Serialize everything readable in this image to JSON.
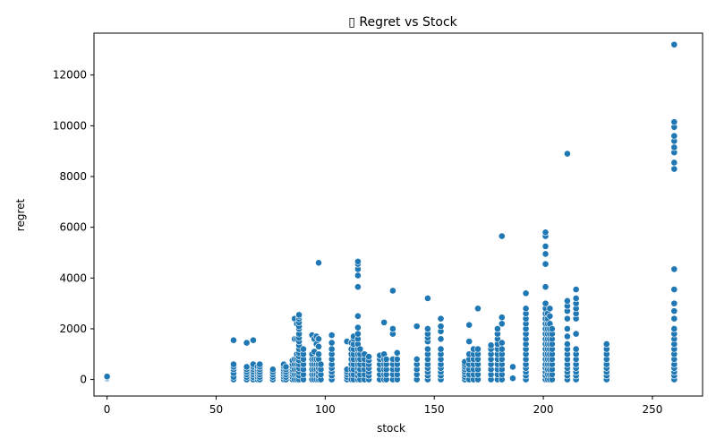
{
  "chart_data": {
    "type": "scatter",
    "title": "▯ Regret vs Stock",
    "xlabel": "stock",
    "ylabel": "regret",
    "xlim": [
      -6,
      273
    ],
    "ylim": [
      -650,
      13650
    ],
    "xticks": [
      "0",
      "50",
      "100",
      "150",
      "200",
      "250"
    ],
    "xtick_values": [
      0,
      50,
      100,
      150,
      200,
      250
    ],
    "yticks": [
      "0",
      "2000",
      "4000",
      "6000",
      "8000",
      "10000",
      "12000"
    ],
    "ytick_values": [
      0,
      2000,
      4000,
      6000,
      8000,
      10000,
      12000
    ],
    "grid": false,
    "legend": "none",
    "marker_color": "#1f77b4",
    "series": [
      {
        "columns": [
          {
            "x": 0,
            "y": [
              30,
              60,
              90,
              120
            ]
          },
          {
            "x": 58,
            "y": [
              0,
              100,
              250,
              400,
              500,
              600,
              1550
            ]
          },
          {
            "x": 64,
            "y": [
              0,
              100,
              200,
              300,
              400,
              500,
              1450
            ]
          },
          {
            "x": 67,
            "y": [
              0,
              100,
              200,
              300,
              400,
              500,
              600,
              1550
            ]
          },
          {
            "x": 69,
            "y": [
              0,
              100,
              200,
              300,
              400,
              500
            ]
          },
          {
            "x": 70,
            "y": [
              0,
              100,
              200,
              300,
              400,
              500,
              600
            ]
          },
          {
            "x": 76,
            "y": [
              0,
              100,
              200,
              300,
              400
            ]
          },
          {
            "x": 81,
            "y": [
              0,
              100,
              200,
              300,
              400,
              500,
              600
            ]
          },
          {
            "x": 82,
            "y": [
              0,
              100,
              200,
              300,
              400,
              500
            ]
          },
          {
            "x": 85,
            "y": [
              0,
              100,
              200,
              300,
              400,
              500,
              600,
              750
            ]
          },
          {
            "x": 86,
            "y": [
              0,
              200,
              400,
              600,
              800,
              1600,
              2400
            ]
          },
          {
            "x": 87,
            "y": [
              0,
              200,
              400,
              600,
              800,
              1000,
              1600,
              2200
            ]
          },
          {
            "x": 88,
            "y": [
              0,
              150,
              300,
              450,
              600,
              750,
              900,
              1050,
              1200,
              1350,
              1500,
              1650,
              1800,
              2000,
              2100,
              2250,
              2400,
              2500,
              2550
            ]
          },
          {
            "x": 90,
            "y": [
              0,
              200,
              400,
              600,
              800,
              1000,
              1200
            ]
          },
          {
            "x": 94,
            "y": [
              0,
              200,
              400,
              600,
              800,
              1000,
              1750
            ]
          },
          {
            "x": 95,
            "y": [
              0,
              200,
              400,
              600,
              800,
              1100,
              1600
            ]
          },
          {
            "x": 96,
            "y": [
              0,
              200,
              400,
              600,
              800,
              1400,
              1700
            ]
          },
          {
            "x": 97,
            "y": [
              0,
              150,
              300,
              450,
              600,
              800,
              1000,
              1300,
              1600,
              4600
            ]
          },
          {
            "x": 98,
            "y": [
              0,
              200,
              400,
              600
            ]
          },
          {
            "x": 103,
            "y": [
              0,
              150,
              300,
              450,
              600,
              800,
              1000,
              1200,
              1450,
              1750
            ]
          },
          {
            "x": 110,
            "y": [
              0,
              100,
              200,
              300,
              400,
              1500
            ]
          },
          {
            "x": 112,
            "y": [
              0,
              200,
              400,
              600,
              800,
              1000,
              1200,
              1450
            ]
          },
          {
            "x": 113,
            "y": [
              0,
              200,
              400,
              600,
              800,
              1000,
              1200,
              1400,
              1600,
              1700
            ]
          },
          {
            "x": 115,
            "y": [
              0,
              150,
              300,
              450,
              600,
              800,
              1000,
              1200,
              1400,
              1600,
              1800,
              2050,
              2500,
              3650,
              4100,
              4350,
              4550,
              4650
            ]
          },
          {
            "x": 116,
            "y": [
              0,
              200,
              400,
              600,
              800,
              1000,
              1200
            ]
          },
          {
            "x": 118,
            "y": [
              0,
              200,
              400,
              600,
              800,
              1000
            ]
          },
          {
            "x": 120,
            "y": [
              0,
              150,
              300,
              450,
              600,
              750,
              900
            ]
          },
          {
            "x": 125,
            "y": [
              0,
              200,
              400,
              600,
              800,
              950
            ]
          },
          {
            "x": 127,
            "y": [
              0,
              200,
              400,
              600,
              800,
              1000,
              2250
            ]
          },
          {
            "x": 128,
            "y": [
              0,
              200,
              400,
              600,
              800
            ]
          },
          {
            "x": 131,
            "y": [
              0,
              200,
              400,
              600,
              800,
              1800,
              2000,
              3500
            ]
          },
          {
            "x": 133,
            "y": [
              0,
              200,
              400,
              600,
              800,
              1050
            ]
          },
          {
            "x": 142,
            "y": [
              0,
              200,
              400,
              600,
              800,
              2100
            ]
          },
          {
            "x": 147,
            "y": [
              0,
              150,
              300,
              450,
              600,
              800,
              1000,
              1200,
              1500,
              1650,
              1800,
              2000,
              3200
            ]
          },
          {
            "x": 153,
            "y": [
              0,
              150,
              300,
              450,
              600,
              800,
              1000,
              1200,
              1600,
              1900,
              2100,
              2400
            ]
          },
          {
            "x": 164,
            "y": [
              0,
              100,
              200,
              300,
              400,
              500,
              600,
              700
            ]
          },
          {
            "x": 166,
            "y": [
              0,
              200,
              400,
              600,
              800,
              1000,
              1500,
              2150
            ]
          },
          {
            "x": 168,
            "y": [
              0,
              200,
              400,
              600,
              800,
              1000,
              1200
            ]
          },
          {
            "x": 170,
            "y": [
              0,
              200,
              400,
              600,
              800,
              1000,
              1200,
              2800
            ]
          },
          {
            "x": 176,
            "y": [
              0,
              200,
              400,
              600,
              800,
              1000,
              1200,
              1350
            ]
          },
          {
            "x": 179,
            "y": [
              0,
              200,
              400,
              600,
              800,
              1000,
              1200,
              1400,
              1600,
              1800,
              2000
            ]
          },
          {
            "x": 181,
            "y": [
              0,
              200,
              400,
              600,
              800,
              1000,
              1200,
              1450,
              2200,
              2450,
              5650
            ]
          },
          {
            "x": 186,
            "y": [
              50,
              500
            ]
          },
          {
            "x": 192,
            "y": [
              0,
              150,
              300,
              450,
              600,
              800,
              1000,
              1200,
              1400,
              1600,
              1800,
              2000,
              2200,
              2400,
              2600,
              2800,
              3400
            ]
          },
          {
            "x": 201,
            "y": [
              0,
              150,
              300,
              450,
              600,
              800,
              1000,
              1200,
              1400,
              1600,
              1800,
              2000,
              2200,
              2400,
              2600,
              2800,
              3000,
              3650,
              4550,
              4950,
              5250,
              5650,
              5800
            ]
          },
          {
            "x": 202,
            "y": [
              0,
              200,
              400,
              600,
              800,
              1000,
              1200,
              1400,
              1600,
              1800,
              2000,
              2200,
              2400,
              2600
            ]
          },
          {
            "x": 203,
            "y": [
              0,
              200,
              400,
              600,
              800,
              1000,
              1200,
              1400,
              1600,
              1800,
              2000,
              2200,
              2500,
              2800
            ]
          },
          {
            "x": 204,
            "y": [
              0,
              200,
              400,
              600,
              800,
              1000,
              1200,
              1400,
              1600,
              1800,
              2000
            ]
          },
          {
            "x": 211,
            "y": [
              0,
              150,
              300,
              450,
              600,
              800,
              1000,
              1200,
              1400,
              1700,
              2000,
              2400,
              2700,
              2900,
              3100,
              8900
            ]
          },
          {
            "x": 215,
            "y": [
              0,
              150,
              300,
              450,
              600,
              800,
              1000,
              1200,
              1800,
              2400,
              2600,
              2800,
              3000,
              3200,
              3550
            ]
          },
          {
            "x": 229,
            "y": [
              0,
              150,
              300,
              450,
              600,
              800,
              1000,
              1200,
              1400
            ]
          },
          {
            "x": 260,
            "y": [
              0,
              150,
              300,
              450,
              600,
              800,
              1000,
              1200,
              1400,
              1600,
              1800,
              2000,
              2400,
              2700,
              3000,
              3550,
              4350,
              8300,
              8550,
              8950,
              9150,
              9400,
              9600,
              9950,
              10150,
              13200
            ]
          }
        ]
      }
    ]
  }
}
